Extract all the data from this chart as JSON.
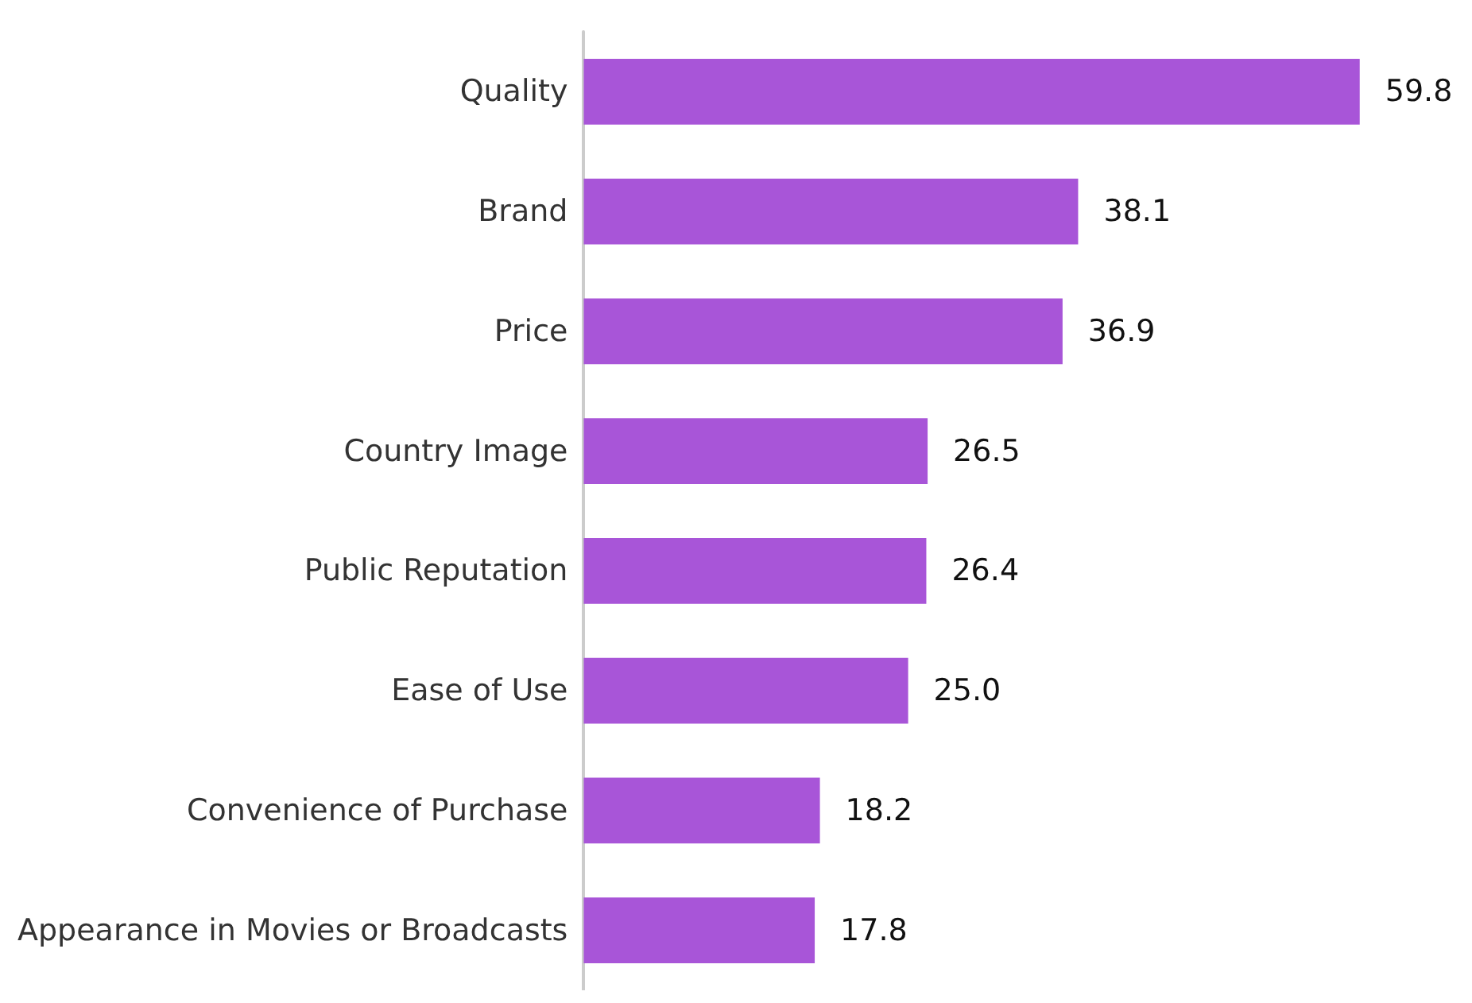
{
  "chart_data": {
    "type": "bar",
    "orientation": "horizontal",
    "categories": [
      "Quality",
      "Brand",
      "Price",
      "Country Image",
      "Public Reputation",
      "Ease of Use",
      "Convenience of Purchase",
      "Appearance in Movies or Broadcasts"
    ],
    "values": [
      59.8,
      38.1,
      36.9,
      26.5,
      26.4,
      25,
      18.2,
      17.8
    ],
    "value_labels": [
      "59.8",
      "38.1",
      "36.9",
      "26.5",
      "26.4",
      "25.0",
      "18.2",
      "17.8"
    ],
    "color": "#a855d8"
  }
}
